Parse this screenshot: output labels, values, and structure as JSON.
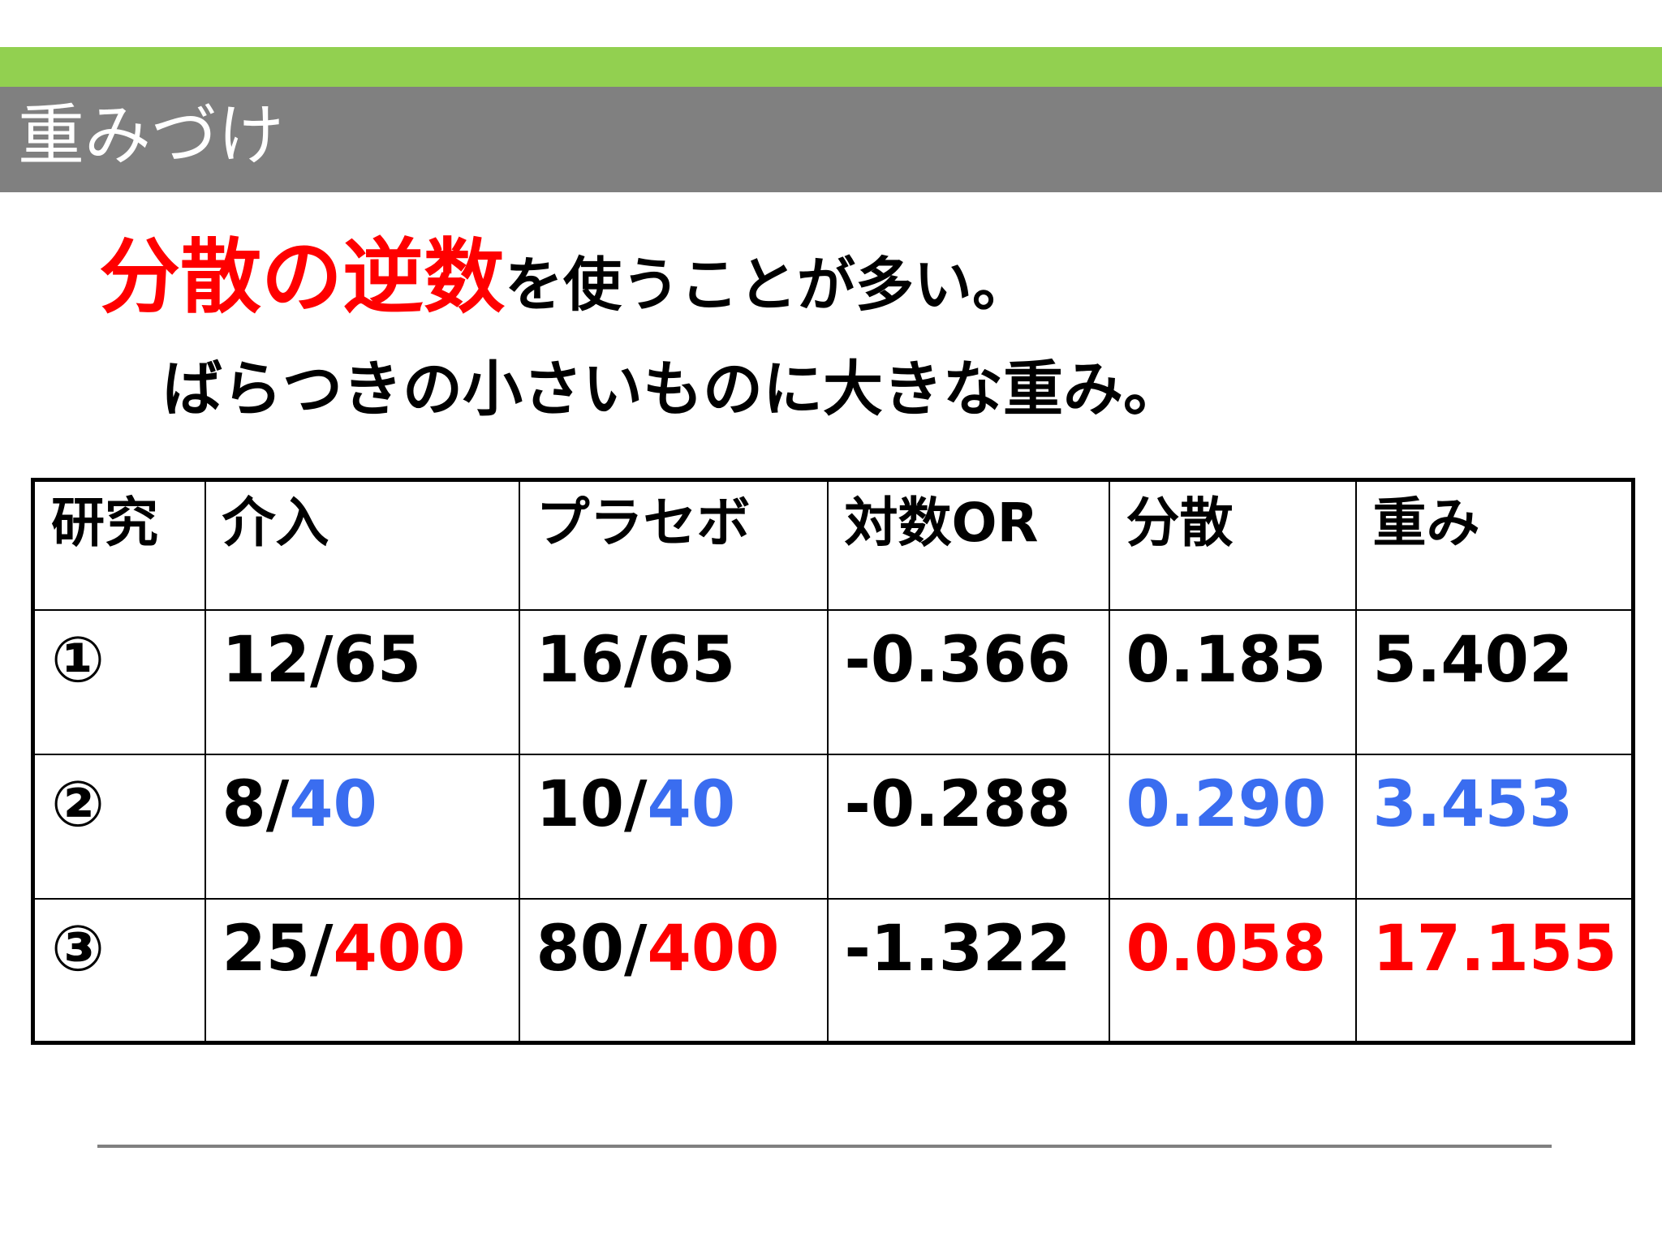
{
  "slide": {
    "title": "重みづけ",
    "headline_emphasis": "分散の逆数",
    "headline_rest": "を使うことが多い。",
    "subline": "ばらつきの小さいものに大きな重み。"
  },
  "table": {
    "headers": [
      "研究",
      "介入",
      "プラセボ",
      "対数OR",
      "分散",
      "重み"
    ],
    "rows": [
      {
        "study": "①",
        "intervention": {
          "events": "12",
          "sep": "/",
          "total": "65"
        },
        "placebo": {
          "events": "16",
          "sep": "/",
          "total": "65"
        },
        "log_or": "-0.366",
        "variance": "0.185",
        "weight": "5.402"
      },
      {
        "study": "②",
        "intervention": {
          "events": "8",
          "sep": "/",
          "total": "40"
        },
        "placebo": {
          "events": "10",
          "sep": "/",
          "total": "40"
        },
        "log_or": "-0.288",
        "variance": "0.290",
        "weight": "3.453"
      },
      {
        "study": "③",
        "intervention": {
          "events": "25",
          "sep": "/",
          "total": "400"
        },
        "placebo": {
          "events": "80",
          "sep": "/",
          "total": "400"
        },
        "log_or": "-1.322",
        "variance": "0.058",
        "weight": "17.155"
      }
    ]
  },
  "colors": {
    "accent_green": "#92d050",
    "title_band_gray": "#808080",
    "emphasis_red": "#ff0000",
    "highlight_blue": "#3a6df0",
    "highlight_red": "#ff0000",
    "footer_line_gray": "#808080"
  }
}
